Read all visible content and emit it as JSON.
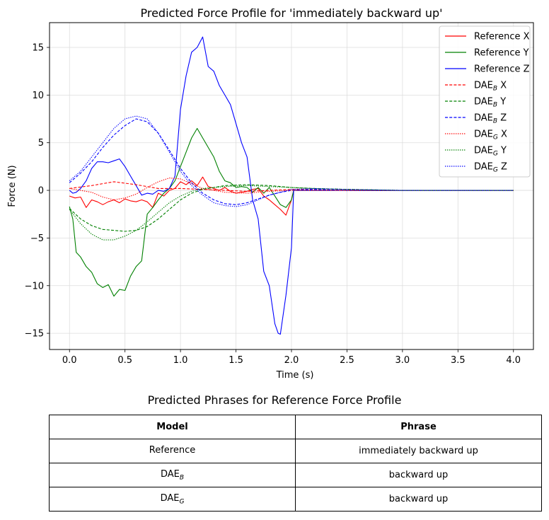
{
  "chart_data": {
    "type": "line",
    "title": "Predicted Force Profile for 'immediately backward up'",
    "xlabel": "Time (s)",
    "ylabel": "Force (N)",
    "xlim": [
      -0.18,
      4.18
    ],
    "ylim": [
      -16.7,
      17.6
    ],
    "xticks": [
      0.0,
      0.5,
      1.0,
      1.5,
      2.0,
      2.5,
      3.0,
      3.5,
      4.0
    ],
    "xtick_labels": [
      "0.0",
      "0.5",
      "1.0",
      "1.5",
      "2.0",
      "2.5",
      "3.0",
      "3.5",
      "4.0"
    ],
    "yticks": [
      -15,
      -10,
      -5,
      0,
      5,
      10,
      15
    ],
    "ytick_labels": [
      "−15",
      "−10",
      "−5",
      "0",
      "5",
      "10",
      "15"
    ],
    "grid": true,
    "legend_position": "top-right",
    "series": [
      {
        "name": "Reference X",
        "label_base": "Reference X",
        "label_sub": "",
        "label_suffix": "",
        "color": "#ff0000",
        "dash": "solid",
        "x": [
          0,
          0.05,
          0.1,
          0.15,
          0.2,
          0.25,
          0.3,
          0.35,
          0.4,
          0.45,
          0.5,
          0.55,
          0.6,
          0.65,
          0.7,
          0.75,
          0.8,
          0.85,
          0.9,
          0.95,
          1.0,
          1.05,
          1.1,
          1.15,
          1.2,
          1.25,
          1.3,
          1.35,
          1.4,
          1.45,
          1.5,
          1.55,
          1.6,
          1.65,
          1.7,
          1.75,
          1.8,
          1.85,
          1.9,
          1.95,
          2.0,
          2.02,
          2.1,
          2.5,
          3.0,
          3.5,
          4.0
        ],
        "y": [
          -0.6,
          -0.8,
          -0.7,
          -1.8,
          -1.0,
          -1.2,
          -1.5,
          -1.2,
          -1.0,
          -1.3,
          -0.9,
          -1.1,
          -1.2,
          -1.0,
          -1.2,
          -1.8,
          -0.3,
          -0.6,
          0.0,
          0.2,
          0.9,
          0.6,
          1.0,
          0.5,
          1.4,
          0.4,
          0.2,
          0.0,
          0.3,
          -0.1,
          -0.3,
          -0.2,
          -0.1,
          0.1,
          0.2,
          -0.6,
          -1.0,
          -1.5,
          -2.0,
          -2.6,
          -1.0,
          0.0,
          0.0,
          0.0,
          0.0,
          0.0,
          0.0
        ]
      },
      {
        "name": "Reference Y",
        "label_base": "Reference Y",
        "label_sub": "",
        "label_suffix": "",
        "color": "#008000",
        "dash": "solid",
        "x": [
          0,
          0.03,
          0.06,
          0.1,
          0.15,
          0.2,
          0.25,
          0.3,
          0.35,
          0.4,
          0.45,
          0.5,
          0.55,
          0.6,
          0.65,
          0.7,
          0.75,
          0.8,
          0.85,
          0.9,
          0.95,
          1.0,
          1.05,
          1.1,
          1.15,
          1.2,
          1.25,
          1.3,
          1.35,
          1.4,
          1.45,
          1.5,
          1.55,
          1.6,
          1.65,
          1.7,
          1.75,
          1.8,
          1.85,
          1.9,
          1.95,
          2.0,
          2.02,
          2.1,
          2.5,
          3.0,
          3.5,
          4.0
        ],
        "y": [
          -1.7,
          -3.0,
          -6.5,
          -7.0,
          -8.0,
          -8.6,
          -9.8,
          -10.2,
          -9.9,
          -11.1,
          -10.4,
          -10.5,
          -9.0,
          -8.0,
          -7.4,
          -2.5,
          -1.8,
          -1.0,
          -0.3,
          0.2,
          1.0,
          2.5,
          4.0,
          5.5,
          6.5,
          5.5,
          4.5,
          3.5,
          2.0,
          1.0,
          0.8,
          0.3,
          0.4,
          0.3,
          -0.2,
          0.3,
          -0.3,
          0.3,
          -0.6,
          -1.5,
          -1.8,
          -1.0,
          0.0,
          0.0,
          0.0,
          0.0,
          0.0,
          0.0
        ]
      },
      {
        "name": "Reference Z",
        "label_base": "Reference Z",
        "label_sub": "",
        "label_suffix": "",
        "color": "#0000ff",
        "dash": "solid",
        "x": [
          0,
          0.03,
          0.06,
          0.1,
          0.15,
          0.2,
          0.25,
          0.3,
          0.35,
          0.4,
          0.45,
          0.5,
          0.55,
          0.6,
          0.65,
          0.7,
          0.75,
          0.8,
          0.85,
          0.9,
          0.95,
          1.0,
          1.05,
          1.1,
          1.15,
          1.2,
          1.25,
          1.3,
          1.35,
          1.4,
          1.45,
          1.5,
          1.55,
          1.6,
          1.65,
          1.7,
          1.75,
          1.8,
          1.85,
          1.88,
          1.9,
          1.95,
          2.0,
          2.02,
          2.1,
          2.5,
          3.0,
          3.5,
          4.0
        ],
        "y": [
          0.0,
          -0.3,
          -0.2,
          0.2,
          1.0,
          2.3,
          3.0,
          3.0,
          2.9,
          3.1,
          3.3,
          2.5,
          1.5,
          0.5,
          -0.5,
          -0.3,
          -0.4,
          0.0,
          -0.1,
          0.2,
          1.5,
          8.5,
          12.0,
          14.5,
          15.0,
          16.1,
          13.0,
          12.5,
          11.0,
          10.0,
          9.0,
          7.0,
          5.0,
          3.5,
          -1.0,
          -3.0,
          -8.5,
          -10.0,
          -14.0,
          -15.0,
          -15.1,
          -11.0,
          -6.0,
          0.0,
          0.0,
          0.0,
          0.0,
          0.0,
          0.0
        ]
      },
      {
        "name": "DAE_B X",
        "label_base": "DAE",
        "label_sub": "B",
        "label_suffix": " X",
        "color": "#ff0000",
        "dash": "dashed",
        "x": [
          0,
          0.2,
          0.4,
          0.6,
          0.8,
          1.0,
          1.2,
          1.4,
          1.6,
          1.8,
          2.0,
          2.2,
          2.5,
          3.0,
          3.5,
          4.0
        ],
        "y": [
          0.2,
          0.5,
          0.9,
          0.6,
          0.2,
          0.2,
          0.1,
          0.0,
          -0.1,
          0.0,
          0.1,
          0.1,
          0.0,
          0.0,
          0.0,
          0.0
        ]
      },
      {
        "name": "DAE_B Y",
        "label_base": "DAE",
        "label_sub": "B",
        "label_suffix": " Y",
        "color": "#008000",
        "dash": "dashed",
        "x": [
          0,
          0.1,
          0.2,
          0.3,
          0.4,
          0.5,
          0.6,
          0.7,
          0.8,
          0.9,
          1.0,
          1.1,
          1.2,
          1.4,
          1.6,
          1.8,
          2.0,
          2.2,
          2.5,
          3.0,
          3.5,
          4.0
        ],
        "y": [
          -1.9,
          -3.0,
          -3.7,
          -4.1,
          -4.2,
          -4.3,
          -4.2,
          -3.8,
          -3.0,
          -2.0,
          -1.0,
          -0.3,
          0.1,
          0.5,
          0.6,
          0.5,
          0.3,
          0.2,
          0.1,
          0.0,
          0.0,
          0.0
        ]
      },
      {
        "name": "DAE_B Z",
        "label_base": "DAE",
        "label_sub": "B",
        "label_suffix": " Z",
        "color": "#0000ff",
        "dash": "dashed",
        "x": [
          0,
          0.1,
          0.2,
          0.3,
          0.4,
          0.5,
          0.6,
          0.7,
          0.8,
          0.9,
          1.0,
          1.1,
          1.2,
          1.3,
          1.4,
          1.5,
          1.6,
          1.7,
          1.8,
          1.9,
          2.0,
          2.2,
          2.5,
          3.0,
          3.5,
          4.0
        ],
        "y": [
          0.8,
          1.8,
          3.0,
          4.5,
          5.8,
          6.8,
          7.5,
          7.2,
          6.0,
          4.2,
          2.3,
          0.8,
          -0.3,
          -1.0,
          -1.4,
          -1.5,
          -1.3,
          -0.9,
          -0.5,
          -0.2,
          0.0,
          0.1,
          0.0,
          0.0,
          0.0,
          0.0
        ]
      },
      {
        "name": "DAE_G X",
        "label_base": "DAE",
        "label_sub": "G",
        "label_suffix": " X",
        "color": "#ff0000",
        "dash": "dotted",
        "x": [
          0,
          0.2,
          0.3,
          0.4,
          0.5,
          0.6,
          0.7,
          0.8,
          0.9,
          1.0,
          1.1,
          1.2,
          1.4,
          1.6,
          1.8,
          2.0,
          2.5,
          3.0,
          3.5,
          4.0
        ],
        "y": [
          0.2,
          -0.2,
          -0.7,
          -1.0,
          -0.8,
          -0.4,
          0.3,
          0.9,
          1.3,
          1.2,
          0.7,
          0.2,
          -0.2,
          -0.3,
          -0.1,
          0.0,
          0.0,
          0.0,
          0.0,
          0.0
        ]
      },
      {
        "name": "DAE_G Y",
        "label_base": "DAE",
        "label_sub": "G",
        "label_suffix": " Y",
        "color": "#008000",
        "dash": "dotted",
        "x": [
          0,
          0.1,
          0.2,
          0.3,
          0.4,
          0.5,
          0.6,
          0.7,
          0.8,
          0.9,
          1.0,
          1.1,
          1.2,
          1.4,
          1.6,
          1.8,
          2.0,
          2.2,
          2.5,
          3.0,
          3.5,
          4.0
        ],
        "y": [
          -2.0,
          -3.5,
          -4.6,
          -5.2,
          -5.2,
          -4.8,
          -4.2,
          -3.3,
          -2.3,
          -1.3,
          -0.6,
          -0.1,
          0.2,
          0.4,
          0.5,
          0.4,
          0.3,
          0.2,
          0.1,
          0.0,
          0.0,
          0.0
        ]
      },
      {
        "name": "DAE_G Z",
        "label_base": "DAE",
        "label_sub": "G",
        "label_suffix": " Z",
        "color": "#0000ff",
        "dash": "dotted",
        "x": [
          0,
          0.1,
          0.2,
          0.3,
          0.4,
          0.5,
          0.6,
          0.7,
          0.8,
          0.9,
          1.0,
          1.1,
          1.2,
          1.3,
          1.4,
          1.5,
          1.6,
          1.7,
          1.8,
          1.9,
          2.0,
          2.2,
          2.5,
          3.0,
          3.5,
          4.0
        ],
        "y": [
          1.0,
          2.0,
          3.5,
          5.0,
          6.5,
          7.5,
          7.8,
          7.5,
          6.0,
          4.0,
          2.0,
          0.5,
          -0.5,
          -1.3,
          -1.6,
          -1.7,
          -1.5,
          -1.0,
          -0.5,
          -0.2,
          0.1,
          0.2,
          0.1,
          0.0,
          0.0,
          0.0
        ]
      }
    ]
  },
  "table": {
    "title": "Predicted Phrases for Reference Force Profile",
    "headers": {
      "model": "Model",
      "phrase": "Phrase"
    },
    "rows": [
      {
        "model_base": "Reference",
        "model_sub": "",
        "phrase": "immediately backward up"
      },
      {
        "model_base": "DAE",
        "model_sub": "B",
        "phrase": "backward up"
      },
      {
        "model_base": "DAE",
        "model_sub": "G",
        "phrase": "backward up"
      }
    ]
  }
}
